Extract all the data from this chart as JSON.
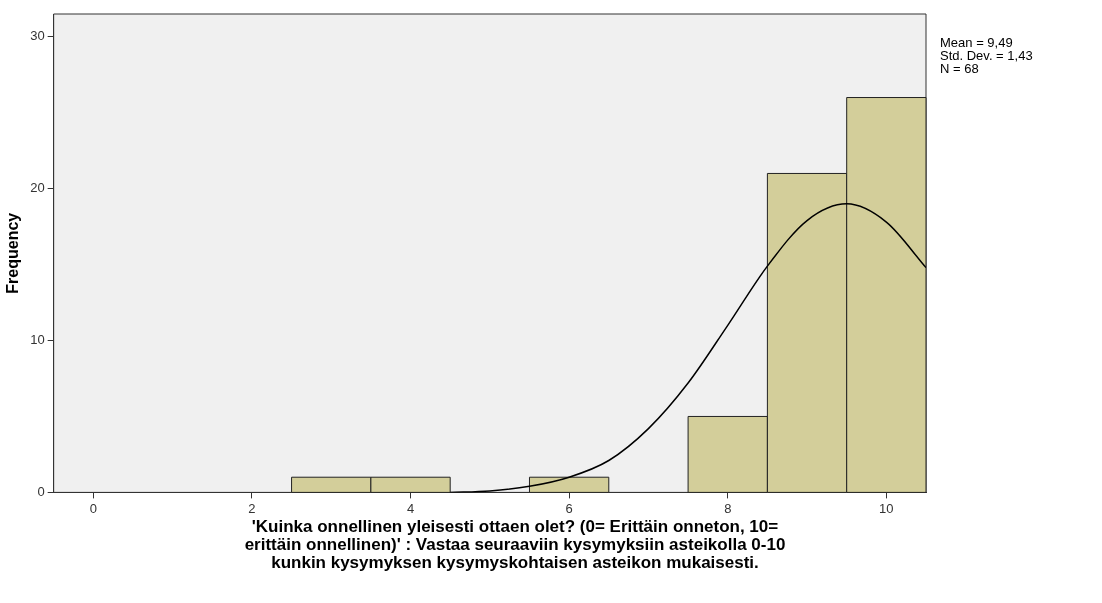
{
  "chart_data": {
    "type": "histogram",
    "xlabel": "'Kuinka onnellinen yleisesti ottaen olet? (0= Erittäin onneton, 10= erittäin onnellinen)' : Vastaa seuraaviin kysymyksiin asteikolla 0-10 kunkin kysymyksen kysymyskohtaisen asteikon mukaisesti.",
    "ylabel": "Frequency",
    "bins": [
      2.5,
      3.5,
      4.5,
      5.5,
      6.5,
      7.5,
      8.5,
      9.5,
      10.5
    ],
    "values": [
      1,
      1,
      0,
      1,
      0,
      5,
      21,
      26
    ],
    "color": "#d3ce9a",
    "series": [
      {
        "type": "line",
        "color": "#000000",
        "x": [
          4.5,
          5,
          5.5,
          6,
          6.5,
          7,
          7.5,
          8,
          8.5,
          9,
          9.5,
          10,
          10.5
        ],
        "values": [
          0,
          0.1,
          0.4,
          1,
          2.1,
          4.2,
          7.2,
          11,
          14.9,
          17.9,
          19,
          17.8,
          14.8
        ]
      }
    ],
    "xlim": [
      -0.5,
      10.5
    ],
    "xticks": [
      0,
      2,
      4,
      6,
      8,
      10
    ],
    "ylim": [
      0,
      31.5
    ],
    "yticks": [
      0,
      10,
      20,
      30
    ],
    "grid": false,
    "legend": false,
    "marker": "none",
    "annotations": [
      "Mean = 9,49",
      "Std. Dev. = 1,43",
      "N = 68"
    ]
  }
}
